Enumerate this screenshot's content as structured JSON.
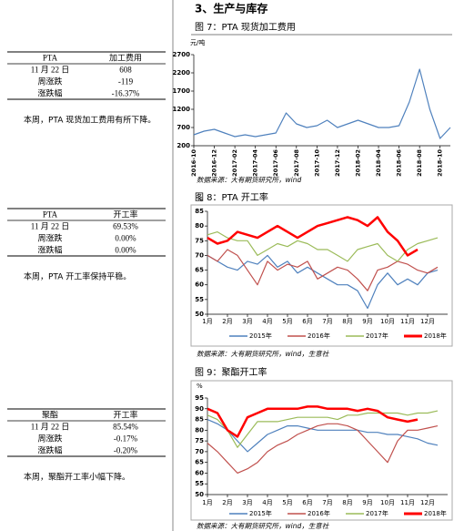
{
  "heading": "3、生产与库存",
  "tables": [
    {
      "header": [
        "PTA",
        "加工费用"
      ],
      "rows": [
        [
          "11 月 22 日",
          "608"
        ],
        [
          "周涨跌",
          "-119"
        ],
        [
          "涨跌幅",
          "-16.37%"
        ]
      ],
      "note": "本周，PTA 现货加工费用有所下降。"
    },
    {
      "header": [
        "PTA",
        "开工率"
      ],
      "rows": [
        [
          "11 月 22 日",
          "69.53%"
        ],
        [
          "周涨跌",
          "0.00%"
        ],
        [
          "涨跌幅",
          "0.00%"
        ]
      ],
      "note": "本周，PTA 开工率保持平稳。"
    },
    {
      "header": [
        "聚酯",
        "开工率"
      ],
      "rows": [
        [
          "11 月 22 日",
          "85.54%"
        ],
        [
          "周涨跌",
          "-0.17%"
        ],
        [
          "涨跌幅",
          "-0.20%"
        ]
      ],
      "note": "本周，聚酯开工率小幅下降。"
    }
  ],
  "chart_data": [
    {
      "type": "line",
      "title": "图 7：PTA 现货加工费用",
      "y_label": "元/吨",
      "source": "数据来源：大有期货研究所，wind",
      "categories": [
        "2016-10",
        null,
        "2016-12",
        null,
        "2017-02",
        null,
        "2017-04",
        null,
        "2017-06",
        null,
        "2017-08",
        null,
        "2017-10",
        null,
        "2017-12",
        null,
        "2018-02",
        null,
        "2018-04",
        null,
        "2018-06",
        null,
        "2018-08",
        null,
        "2018-10",
        null
      ],
      "series": [
        {
          "name": null,
          "color": "#4f81bd",
          "values": [
            500,
            600,
            650,
            550,
            450,
            500,
            450,
            500,
            550,
            1100,
            800,
            700,
            750,
            900,
            700,
            800,
            900,
            800,
            700,
            700,
            750,
            1400,
            2300,
            1200,
            400,
            700
          ]
        }
      ],
      "ylim": [
        200,
        2700
      ],
      "yticks": [
        200,
        700,
        1200,
        1700,
        2200,
        2700
      ],
      "legend": false
    },
    {
      "type": "line",
      "title": "图 8：PTA 开工率",
      "y_label": "%",
      "source": "数据来源：大有期货研究所，wind，生意社",
      "categories": [
        "1月",
        null,
        "2月",
        null,
        "3月",
        null,
        "4月",
        null,
        "5月",
        null,
        "6月",
        null,
        "7月",
        null,
        "8月",
        null,
        "9月",
        null,
        "10月",
        null,
        "11月",
        null,
        "12月",
        null
      ],
      "series": [
        {
          "name": "2015年",
          "color": "#4f81bd",
          "values": [
            70,
            68,
            66,
            65,
            68,
            67,
            70,
            66,
            68,
            64,
            66,
            64,
            62,
            60,
            60,
            58,
            52,
            60,
            64,
            60,
            62,
            60,
            64,
            65
          ]
        },
        {
          "name": "2016年",
          "color": "#c0504d",
          "values": [
            70,
            68,
            72,
            70,
            65,
            60,
            68,
            65,
            67,
            66,
            68,
            62,
            64,
            66,
            65,
            62,
            58,
            65,
            66,
            68,
            67,
            65,
            64,
            66
          ]
        },
        {
          "name": "2017年",
          "color": "#9bbb59",
          "values": [
            77,
            78,
            76,
            75,
            75,
            70,
            72,
            74,
            73,
            75,
            74,
            72,
            72,
            70,
            68,
            72,
            73,
            74,
            70,
            68,
            72,
            74,
            75,
            76
          ]
        },
        {
          "name": "2018年",
          "color": "#ff0000",
          "values": [
            76,
            74,
            75,
            78,
            77,
            76,
            78,
            80,
            78,
            76,
            78,
            80,
            81,
            82,
            83,
            82,
            80,
            83,
            78,
            75,
            70,
            72,
            null,
            null
          ]
        }
      ],
      "ylim": [
        50,
        85
      ],
      "yticks": [
        50,
        55,
        60,
        65,
        70,
        75,
        80,
        85
      ],
      "legend": true
    },
    {
      "type": "line",
      "title": "图 9：聚酯开工率",
      "y_label": "%",
      "source": "数据来源：大有期货研究所，wind，生意社",
      "categories": [
        "1月",
        null,
        "2月",
        null,
        "3月",
        null,
        "4月",
        null,
        "5月",
        null,
        "6月",
        null,
        "7月",
        null,
        "8月",
        null,
        "9月",
        null,
        "10月",
        null,
        "11月",
        null,
        "12月",
        null
      ],
      "series": [
        {
          "name": "2015年",
          "color": "#4f81bd",
          "values": [
            85,
            83,
            80,
            75,
            70,
            74,
            78,
            80,
            82,
            82,
            81,
            80,
            80,
            80,
            80,
            80,
            79,
            79,
            78,
            78,
            77,
            76,
            74,
            73
          ]
        },
        {
          "name": "2016年",
          "color": "#c0504d",
          "values": [
            74,
            70,
            65,
            60,
            62,
            65,
            70,
            73,
            75,
            78,
            80,
            82,
            83,
            83,
            82,
            80,
            75,
            70,
            65,
            75,
            80,
            80,
            81,
            82
          ]
        },
        {
          "name": "2017年",
          "color": "#9bbb59",
          "values": [
            87,
            85,
            80,
            72,
            78,
            84,
            84,
            84,
            85,
            86,
            86,
            86,
            86,
            85,
            87,
            87,
            88,
            88,
            88,
            88,
            87,
            88,
            88,
            89
          ]
        },
        {
          "name": "2018年",
          "color": "#ff0000",
          "values": [
            90,
            88,
            80,
            77,
            86,
            88,
            90,
            90,
            90,
            90,
            91,
            91,
            90,
            90,
            90,
            89,
            90,
            89,
            86,
            85,
            84,
            85,
            null,
            null
          ]
        }
      ],
      "ylim": [
        50,
        95
      ],
      "yticks": [
        50,
        55,
        60,
        65,
        70,
        75,
        80,
        85,
        90,
        95
      ],
      "legend": true
    }
  ]
}
